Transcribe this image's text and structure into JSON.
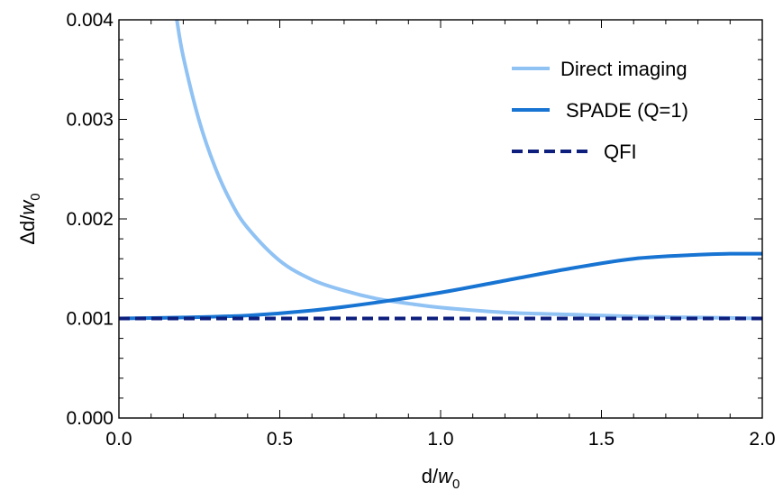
{
  "chart_data": {
    "type": "line",
    "title": "",
    "xlabel": {
      "base": "d/",
      "italic": "w",
      "sub": "0"
    },
    "ylabel": {
      "base": "Δd/",
      "italic": "w",
      "sub": "0"
    },
    "xlim": [
      0,
      2
    ],
    "ylim": [
      0,
      0.004
    ],
    "x_ticks": [
      "0.0",
      "0.5",
      "1.0",
      "1.5",
      "2.0"
    ],
    "y_ticks": [
      "0.000",
      "0.001",
      "0.002",
      "0.003",
      "0.004"
    ],
    "grid": false,
    "legend_position": "top-right",
    "series": [
      {
        "name": "Direct imaging",
        "color": "#90c2f4",
        "dash": "solid",
        "x": [
          0.18,
          0.2,
          0.25,
          0.3,
          0.35,
          0.4,
          0.5,
          0.6,
          0.7,
          0.8,
          0.9,
          1.0,
          1.2,
          1.4,
          1.6,
          1.8,
          2.0
        ],
        "y": [
          0.004,
          0.00363,
          0.00298,
          0.00251,
          0.00216,
          0.00191,
          0.00158,
          0.00139,
          0.00128,
          0.0012,
          0.00115,
          0.00111,
          0.00106,
          0.00104,
          0.00102,
          0.00101,
          0.001
        ]
      },
      {
        "name": "SPADE (Q=1)",
        "color": "#1874d2",
        "dash": "solid",
        "x": [
          0.0,
          0.2,
          0.4,
          0.6,
          0.8,
          1.0,
          1.2,
          1.4,
          1.6,
          1.8,
          1.9,
          2.0
        ],
        "y": [
          0.001,
          0.00101,
          0.00103,
          0.00108,
          0.00116,
          0.00126,
          0.00138,
          0.0015,
          0.0016,
          0.00164,
          0.00165,
          0.00165
        ]
      },
      {
        "name": "QFI",
        "color": "#0d1e7c",
        "dash": "dashed",
        "x": [
          0.0,
          2.0
        ],
        "y": [
          0.001,
          0.001
        ]
      }
    ]
  }
}
